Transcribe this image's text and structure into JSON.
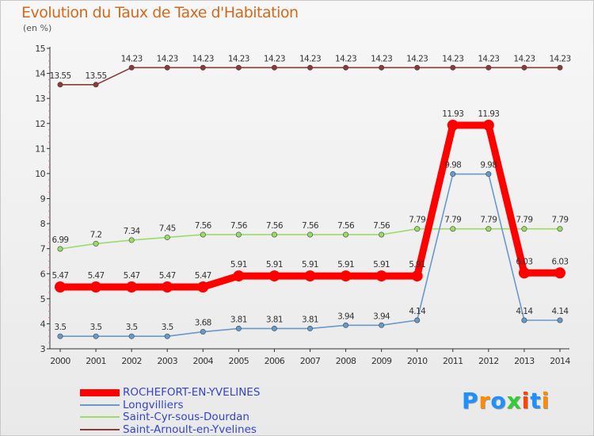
{
  "title": "Evolution du Taux de Taxe d'Habitation",
  "unit_label": "(en %)",
  "brand": "Proxiti",
  "brand_colors": [
    "#1e90ff",
    "#ff8c00",
    "#1e90ff",
    "#32cd32",
    "#ff4500",
    "#1e90ff",
    "#ff8c00"
  ],
  "chart_data": {
    "type": "line",
    "title": "Evolution du Taux de Taxe d'Habitation",
    "ylabel": "(en %)",
    "xlabel": "",
    "ylim": [
      3,
      15
    ],
    "yticks": [
      3,
      4,
      5,
      6,
      7,
      8,
      9,
      10,
      11,
      12,
      13,
      14,
      15
    ],
    "grid": false,
    "legend_position": "bottom-left",
    "x": [
      "2000",
      "2001",
      "2002",
      "2003",
      "2004",
      "2005",
      "2006",
      "2007",
      "2008",
      "2009",
      "2010",
      "2011",
      "2012",
      "2013",
      "2014"
    ],
    "series": [
      {
        "name": "ROCHEFORT-EN-YVELINES",
        "color": "#ff0000",
        "values": [
          5.47,
          5.47,
          5.47,
          5.47,
          5.47,
          5.91,
          5.91,
          5.91,
          5.91,
          5.91,
          5.91,
          11.93,
          11.93,
          6.03,
          6.03
        ],
        "labels": [
          "5.47",
          "5.47",
          "5.47",
          "5.47",
          "5.47",
          "5.91",
          "5.91",
          "5.91",
          "5.91",
          "5.91",
          "5.91",
          "11.93",
          "11.93",
          "6.03",
          "6.03"
        ]
      },
      {
        "name": "Longvilliers",
        "color": "#6699cc",
        "values": [
          3.5,
          3.5,
          3.5,
          3.5,
          3.68,
          3.81,
          3.81,
          3.81,
          3.94,
          3.94,
          4.14,
          9.98,
          9.98,
          4.14,
          4.14
        ],
        "labels": [
          "3.5",
          "3.5",
          "3.5",
          "3.5",
          "3.68",
          "3.81",
          "3.81",
          "3.81",
          "3.94",
          "3.94",
          "4.14",
          "9.98",
          "9.98",
          "4.14",
          "4.14"
        ]
      },
      {
        "name": "Saint-Cyr-sous-Dourdan",
        "color": "#99dd66",
        "values": [
          6.99,
          7.2,
          7.34,
          7.45,
          7.56,
          7.56,
          7.56,
          7.56,
          7.56,
          7.56,
          7.79,
          7.79,
          7.79,
          7.79,
          7.79
        ],
        "labels": [
          "6.99",
          "7.2",
          "7.34",
          "7.45",
          "7.56",
          "7.56",
          "7.56",
          "7.56",
          "7.56",
          "7.56",
          "7.79",
          "7.79",
          "7.79",
          "7.79",
          "7.79"
        ]
      },
      {
        "name": "Saint-Arnoult-en-Yvelines",
        "color": "#8b3a3a",
        "values": [
          13.55,
          13.55,
          14.23,
          14.23,
          14.23,
          14.23,
          14.23,
          14.23,
          14.23,
          14.23,
          14.23,
          14.23,
          14.23,
          14.23,
          14.23
        ],
        "labels": [
          "13.55",
          "13.55",
          "14.23",
          "14.23",
          "14.23",
          "14.23",
          "14.23",
          "14.23",
          "14.23",
          "14.23",
          "14.23",
          "14.23",
          "14.23",
          "14.23",
          "14.23"
        ]
      }
    ]
  }
}
